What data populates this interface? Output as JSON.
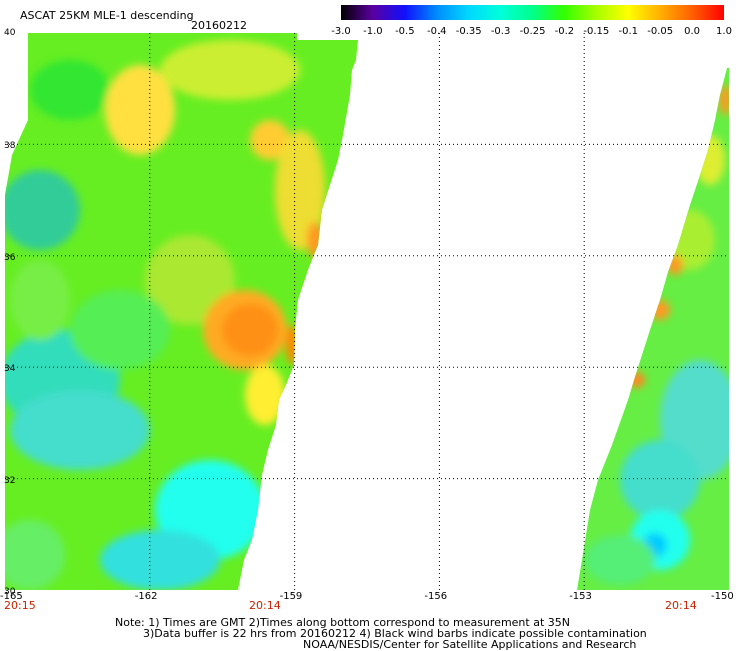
{
  "header": {
    "title": "ASCAT 25KM MLE-1 descending",
    "date": "20160212"
  },
  "colorbar": {
    "labels": [
      "-3.0",
      "-1.0",
      "-0.5",
      "-0.4",
      "-0.35",
      "-0.3",
      "-0.25",
      "-0.2",
      "-0.15",
      "-0.1",
      "-0.05",
      "0.0",
      "1.0"
    ],
    "colors": [
      "#000000",
      "#5a00a0",
      "#1010ff",
      "#008cff",
      "#00d8ff",
      "#00ffd8",
      "#00ff8a",
      "#33ff00",
      "#a8ff00",
      "#ffff00",
      "#ffb000",
      "#ff6000",
      "#ff0000"
    ]
  },
  "axes": {
    "lat_labels": [
      "40",
      "38",
      "36",
      "34",
      "32",
      "30"
    ],
    "lon_labels": [
      "-165",
      "-162",
      "-159",
      "-156",
      "-153",
      "-150"
    ],
    "lon_range": [
      -165,
      -150
    ],
    "lat_range": [
      30,
      40
    ]
  },
  "times": {
    "left": "20:15",
    "middle": "20:14",
    "right": "20:14"
  },
  "notes": {
    "line1": "Note: 1) Times are GMT 2)Times along bottom correspond to measurement at 35N",
    "line2": "3)Data buffer is 22 hrs from 20160212 4) Black wind barbs indicate possible contamination",
    "line3": "NOAA/NESDIS/Center for Satellite Applications and Research"
  }
}
